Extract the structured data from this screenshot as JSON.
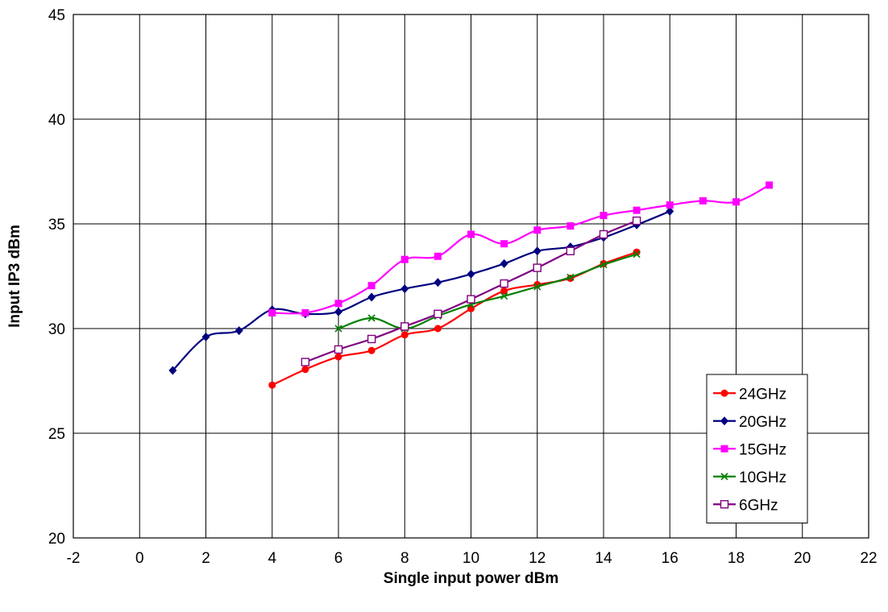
{
  "chart_data": {
    "type": "line",
    "title": "",
    "xlabel": "Single input power dBm",
    "ylabel": "Input IP3 dBm",
    "xlim": [
      -2,
      22
    ],
    "ylim": [
      20,
      45
    ],
    "x_ticks": [
      "-2",
      "0",
      "2",
      "4",
      "6",
      "8",
      "10",
      "12",
      "14",
      "16",
      "18",
      "20",
      "22"
    ],
    "y_ticks": [
      "20",
      "25",
      "30",
      "35",
      "40",
      "45"
    ],
    "grid": true,
    "legend_position": "bottom-right",
    "series": [
      {
        "name": "24GHz",
        "color": "#ff0000",
        "marker": "circle",
        "x": [
          4,
          5,
          6,
          7,
          8,
          9,
          10,
          11,
          12,
          13,
          14,
          15
        ],
        "y": [
          27.3,
          28.05,
          28.65,
          28.95,
          29.7,
          30.0,
          30.95,
          31.8,
          32.1,
          32.4,
          33.1,
          33.65
        ]
      },
      {
        "name": "20GHz",
        "color": "#000080",
        "marker": "diamond",
        "x": [
          1,
          2,
          3,
          4,
          5,
          6,
          7,
          8,
          9,
          10,
          11,
          12,
          13,
          14,
          15,
          16
        ],
        "y": [
          28.0,
          29.6,
          29.9,
          30.9,
          30.7,
          30.8,
          31.5,
          31.9,
          32.2,
          32.6,
          33.1,
          33.7,
          33.9,
          34.35,
          34.95,
          35.6
        ]
      },
      {
        "name": "15GHz",
        "color": "#ff00ff",
        "marker": "square",
        "x": [
          4,
          5,
          6,
          7,
          8,
          9,
          10,
          11,
          12,
          13,
          14,
          15,
          16,
          17,
          18,
          19
        ],
        "y": [
          30.75,
          30.75,
          31.2,
          32.05,
          33.3,
          33.45,
          34.5,
          34.05,
          34.7,
          34.9,
          35.4,
          35.65,
          35.9,
          36.1,
          36.05,
          36.85
        ]
      },
      {
        "name": "10GHz",
        "color": "#008000",
        "marker": "x",
        "x": [
          6,
          7,
          8,
          9,
          10,
          11,
          12,
          13,
          14,
          15
        ],
        "y": [
          30.0,
          30.5,
          30.0,
          30.6,
          31.15,
          31.55,
          32.0,
          32.45,
          33.05,
          33.55
        ]
      },
      {
        "name": "6GHz",
        "color": "#800080",
        "marker": "open-square",
        "x": [
          5,
          6,
          7,
          8,
          9,
          10,
          11,
          12,
          13,
          14,
          15
        ],
        "y": [
          28.4,
          29.0,
          29.5,
          30.1,
          30.7,
          31.4,
          32.15,
          32.9,
          33.7,
          34.5,
          35.15
        ]
      }
    ]
  }
}
